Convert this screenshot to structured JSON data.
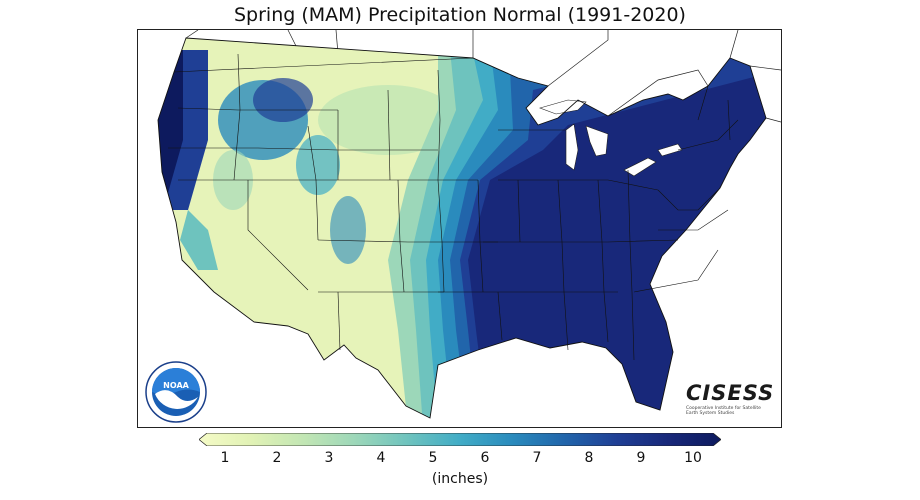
{
  "title": "Spring (MAM) Precipitation Normal (1991-2020)",
  "colorbar": {
    "ticks": [
      "1",
      "2",
      "3",
      "4",
      "5",
      "6",
      "7",
      "8",
      "9",
      "10"
    ],
    "units": "(inches)",
    "colors": [
      "#f5fbc7",
      "#e1f2b5",
      "#c2e6b4",
      "#9cd7b9",
      "#6ec3be",
      "#41acc6",
      "#2a8bbd",
      "#2165ab",
      "#1f3f95",
      "#18287a",
      "#0d1a5e"
    ]
  },
  "logos": {
    "noaa": "NOAA",
    "cisess_name": "CISESS",
    "cisess_subtitle": "Cooperative Institute for Satellite Earth System Studies"
  }
}
